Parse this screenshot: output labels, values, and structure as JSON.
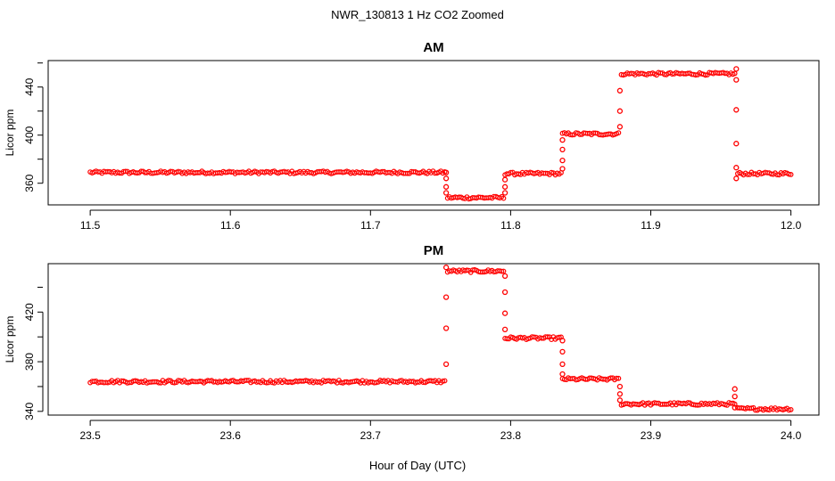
{
  "chart_data": {
    "type": "scatter",
    "title": "NWR_130813  1 Hz CO2 Zoomed",
    "xlabel": "Hour of Day (UTC)",
    "marker_color": "#ff0000",
    "panels": [
      {
        "title": "AM",
        "ylabel": "Licor ppm",
        "xlim": [
          11.47,
          12.02
        ],
        "ylim": [
          342,
          462
        ],
        "xticks": [
          "11.5",
          "11.6",
          "11.7",
          "11.8",
          "11.9",
          "12.0"
        ],
        "xtick_values": [
          11.5,
          11.6,
          11.7,
          11.8,
          11.9,
          12.0
        ],
        "yticks": [
          "360",
          "400",
          "440"
        ],
        "ytick_values": [
          360,
          400,
          440
        ],
        "segments": [
          {
            "x": [
              11.5,
              11.753
            ],
            "y": 369
          },
          {
            "x": [
              11.755,
              11.795
            ],
            "y": 348
          },
          {
            "x": [
              11.796,
              11.836
            ],
            "y": 368
          },
          {
            "x": [
              11.837,
              11.877
            ],
            "y": 401
          },
          {
            "x": [
              11.879,
              11.96
            ],
            "y": 451
          },
          {
            "x": [
              11.962,
              12.0
            ],
            "y": 368
          }
        ],
        "transitions": [
          {
            "x": 11.754,
            "y": [
              369,
              364,
              357,
              352
            ]
          },
          {
            "x": 11.796,
            "y": [
              352,
              357,
              363
            ]
          },
          {
            "x": 11.837,
            "y": [
              372,
              379,
              388,
              396
            ]
          },
          {
            "x": 11.878,
            "y": [
              407,
              420,
              437
            ]
          },
          {
            "x": 11.961,
            "y": [
              455,
              446,
              421,
              393,
              373,
              364
            ]
          }
        ]
      },
      {
        "title": "PM",
        "ylabel": "Licor ppm",
        "xlim": [
          23.47,
          24.02
        ],
        "ylim": [
          337,
          459
        ],
        "xticks": [
          "23.5",
          "23.6",
          "23.7",
          "23.8",
          "23.9",
          "24.0"
        ],
        "xtick_values": [
          23.5,
          23.6,
          23.7,
          23.8,
          23.9,
          24.0
        ],
        "yticks": [
          "340",
          "380",
          "420"
        ],
        "ytick_values": [
          340,
          380,
          420
        ],
        "segments": [
          {
            "x": [
              23.5,
              23.753
            ],
            "y": 364
          },
          {
            "x": [
              23.755,
              23.795
            ],
            "y": 453
          },
          {
            "x": [
              23.796,
              23.836
            ],
            "y": 399
          },
          {
            "x": [
              23.837,
              23.877
            ],
            "y": 366
          },
          {
            "x": [
              23.879,
              23.96
            ],
            "y": 346
          },
          {
            "x": [
              23.962,
              24.0
            ],
            "y": 342
          }
        ],
        "transitions": [
          {
            "x": 23.754,
            "y": [
              378,
              407,
              432,
              456
            ]
          },
          {
            "x": 23.796,
            "y": [
              449,
              436,
              419,
              406
            ]
          },
          {
            "x": 23.837,
            "y": [
              397,
              388,
              378,
              370
            ]
          },
          {
            "x": 23.878,
            "y": [
              360,
              354,
              349
            ]
          },
          {
            "x": 23.96,
            "y": [
              358,
              352,
              343
            ]
          }
        ]
      }
    ]
  }
}
